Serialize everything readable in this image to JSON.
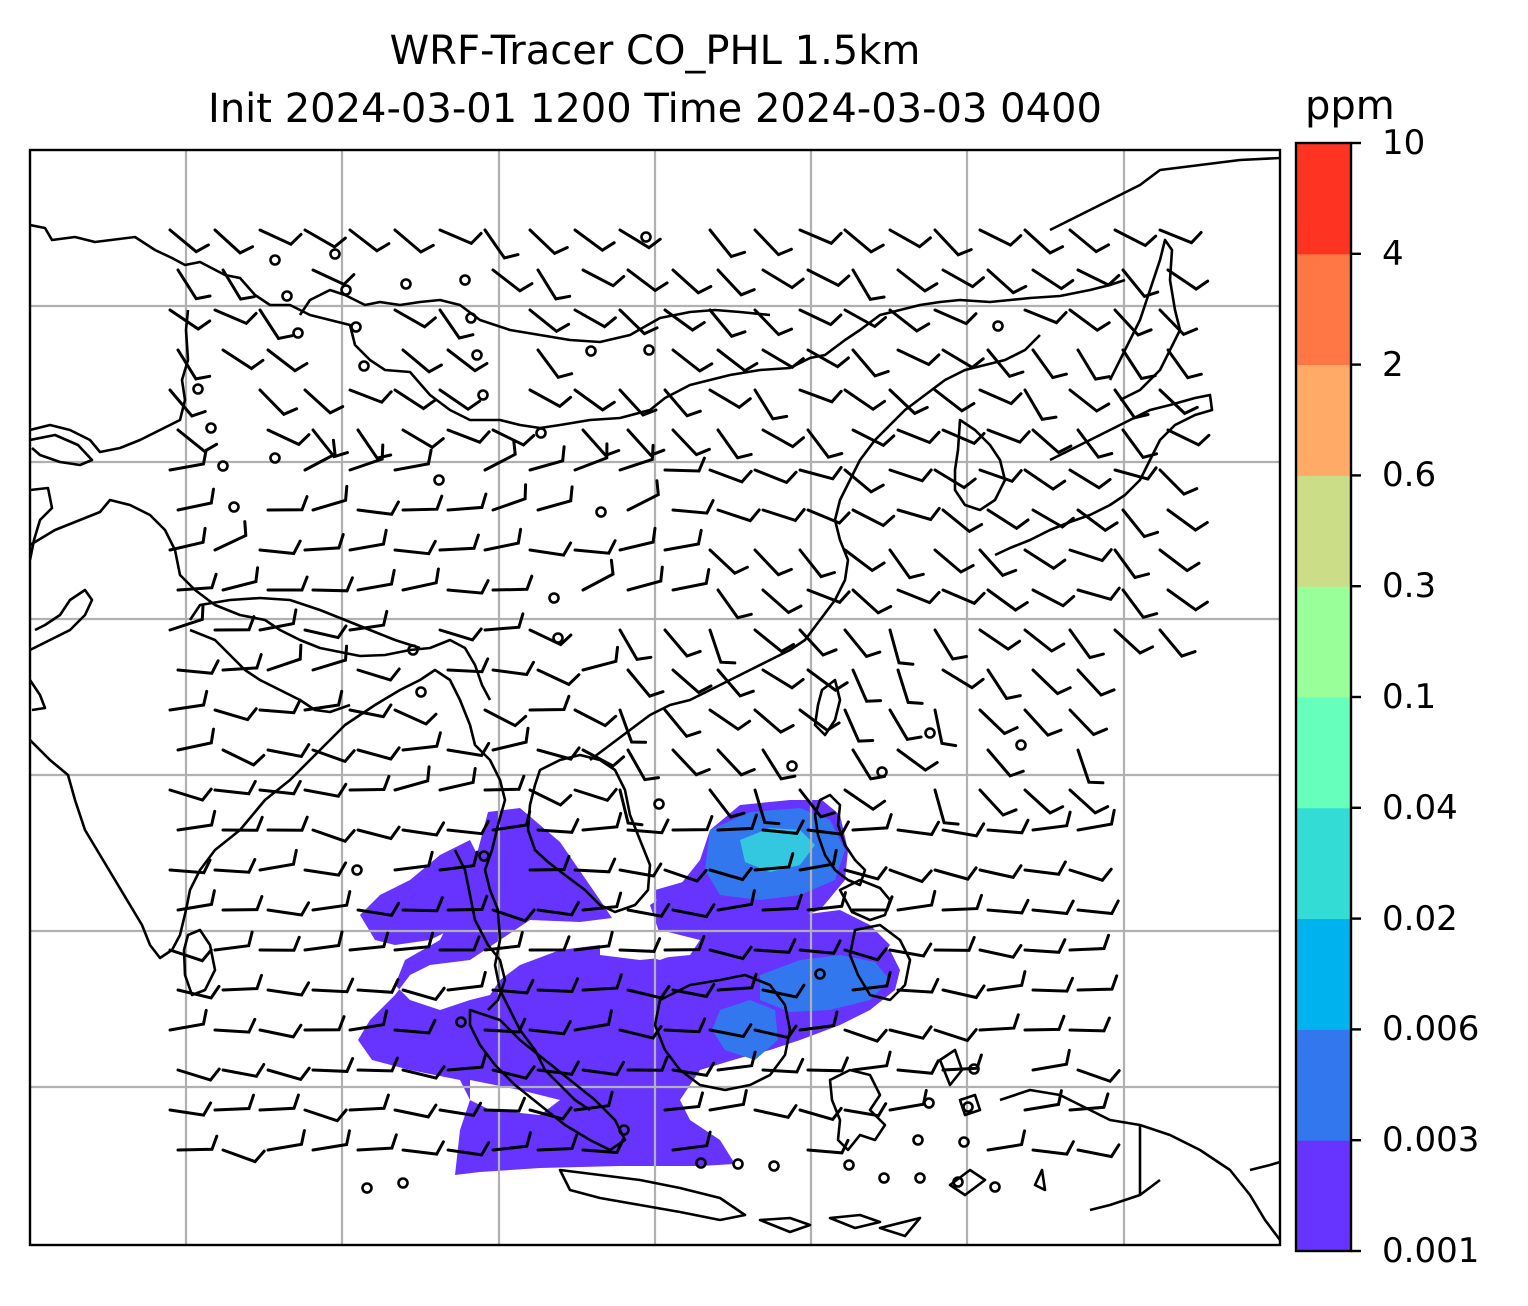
{
  "title": {
    "line1": "WRF-Tracer CO_PHL 1.5km",
    "line2": "Init 2024-03-01 1200 Time 2024-03-03 0400"
  },
  "colorbar": {
    "unit": "ppm",
    "levels": [
      "0.001",
      "0.003",
      "0.006",
      "0.02",
      "0.04",
      "0.1",
      "0.3",
      "0.6",
      "2",
      "4",
      "10"
    ],
    "colors": [
      "#6633ff",
      "#3377ee",
      "#00b2ee",
      "#33ddd6",
      "#66ffbb",
      "#99ff99",
      "#ccdd88",
      "#ffaa66",
      "#ff7744",
      "#ff3322"
    ]
  },
  "map": {
    "frame_color": "#000000",
    "gridline_color": "#b0b0b0",
    "coastline_color": "#000000",
    "field_colors": {
      "low": "#6633ff",
      "mid": "#3377ee",
      "high": "#33c8e0"
    }
  }
}
